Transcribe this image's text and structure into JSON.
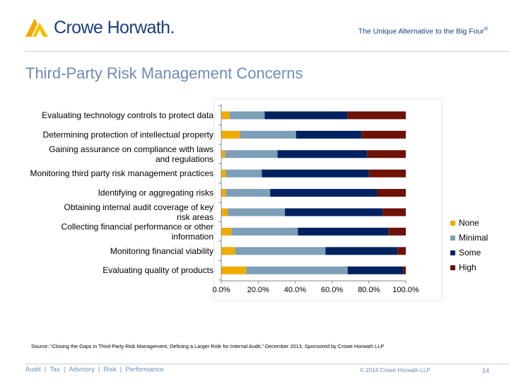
{
  "header": {
    "logo_text": "Crowe Horwath.",
    "tagline": "The Unique Alternative to the Big Four",
    "tagline_mark": "®"
  },
  "slide": {
    "title": "Third-Party Risk Management Concerns",
    "source": "Source: “Closing the Gaps in Third-Party Risk Management, Defining a Larger Role for Internal Audit,” December 2013, Sponsored by Crowe Horwath LLP"
  },
  "footer": {
    "nav": [
      "Audit",
      "Tax",
      "Advisory",
      "Risk",
      "Performance"
    ],
    "separator": "|",
    "copyright": "© 2014 Crowe Horwath LLP",
    "page_number": "14"
  },
  "chart_data": {
    "type": "bar",
    "orientation": "horizontal",
    "stacked": "percent",
    "categories": [
      "Evaluating technology controls to protect data",
      "Determining protection of intellectual property",
      "Gaining assurance on compliance with laws and regulations",
      "Monitoring third party risk management practices",
      "Identifying or aggregating risks",
      "Obtaining internal audit coverage of key risk areas",
      "Collecting financial performance or other information",
      "Monitoring financial viability",
      "Evaluating quality of products"
    ],
    "series": [
      {
        "name": "None",
        "color": "#f0ab00",
        "values": [
          4.5,
          10.0,
          2.0,
          2.5,
          2.5,
          3.5,
          5.5,
          7.5,
          13.5
        ]
      },
      {
        "name": "Minimal",
        "color": "#7e9fb8",
        "values": [
          19.0,
          30.5,
          28.5,
          19.5,
          24.0,
          31.0,
          36.0,
          49.0,
          55.0
        ]
      },
      {
        "name": "Some",
        "color": "#002260",
        "values": [
          45.0,
          35.5,
          48.5,
          58.0,
          58.0,
          53.0,
          49.0,
          39.0,
          30.0
        ]
      },
      {
        "name": "High",
        "color": "#6e1207",
        "values": [
          31.5,
          24.0,
          21.0,
          20.0,
          15.5,
          12.5,
          9.5,
          4.5,
          1.5
        ]
      }
    ],
    "xticks": [
      "0.0%",
      "20.0%",
      "40.0%",
      "60.0%",
      "80.0%",
      "100.0%"
    ],
    "xlim": [
      0,
      100
    ],
    "grid": false,
    "legend": "right"
  }
}
